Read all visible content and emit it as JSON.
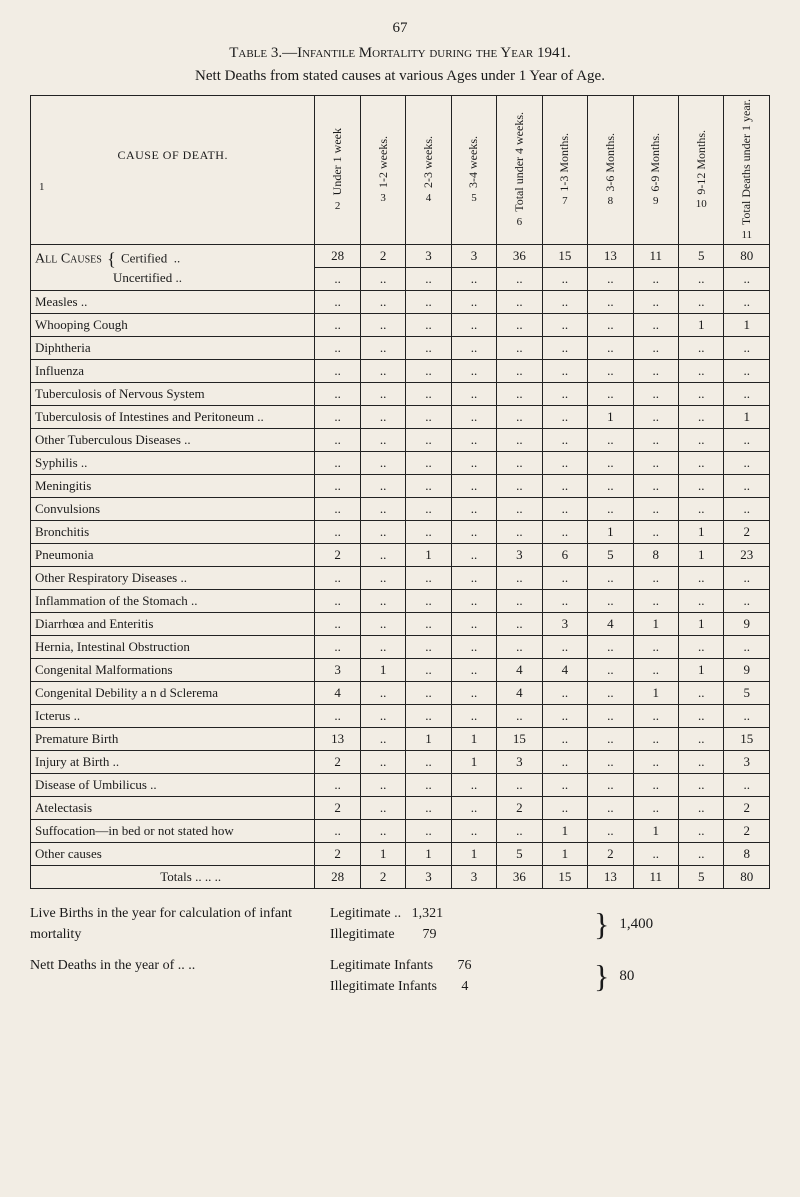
{
  "page_number": "67",
  "table_title": "Table 3.—Infantile Mortality during the Year 1941.",
  "subtitle": "Nett Deaths from stated causes at various Ages under 1 Year of Age.",
  "header": {
    "cause": "CAUSE OF DEATH.",
    "cause_colnum": "1",
    "cols": [
      {
        "label": "Under 1 week",
        "num": "2"
      },
      {
        "label": "1-2 weeks.",
        "num": "3"
      },
      {
        "label": "2-3 weeks.",
        "num": "4"
      },
      {
        "label": "3-4 weeks.",
        "num": "5"
      },
      {
        "label": "Total under 4 weeks.",
        "num": "6"
      },
      {
        "label": "1-3 Months.",
        "num": "7"
      },
      {
        "label": "3-6 Months.",
        "num": "8"
      },
      {
        "label": "6-9 Months.",
        "num": "9"
      },
      {
        "label": "9-12 Months.",
        "num": "10"
      },
      {
        "label": "Total Deaths under 1 year.",
        "num": "11"
      }
    ]
  },
  "all_causes": {
    "label": "All Causes",
    "certified": "Certified",
    "uncertified": "Uncertified",
    "certified_vals": [
      "28",
      "2",
      "3",
      "3",
      "36",
      "15",
      "13",
      "11",
      "5",
      "80"
    ],
    "uncertified_vals": [
      "..",
      "..",
      "..",
      "..",
      "..",
      "..",
      "..",
      "..",
      "..",
      ".."
    ]
  },
  "rows": [
    {
      "cause": "Measles ..",
      "v": [
        "..",
        "..",
        "..",
        "..",
        "..",
        "..",
        "..",
        "..",
        "..",
        ".."
      ]
    },
    {
      "cause": "Whooping Cough",
      "v": [
        "..",
        "..",
        "..",
        "..",
        "..",
        "..",
        "..",
        "..",
        "1",
        "1"
      ]
    },
    {
      "cause": "Diphtheria",
      "v": [
        "..",
        "..",
        "..",
        "..",
        "..",
        "..",
        "..",
        "..",
        "..",
        ".."
      ]
    },
    {
      "cause": "Influenza",
      "v": [
        "..",
        "..",
        "..",
        "..",
        "..",
        "..",
        "..",
        "..",
        "..",
        ".."
      ]
    },
    {
      "cause": "Tuberculosis of Nervous System",
      "v": [
        "..",
        "..",
        "..",
        "..",
        "..",
        "..",
        "..",
        "..",
        "..",
        ".."
      ]
    },
    {
      "cause": "Tuberculosis of Intestines and Peritoneum ..",
      "indent": false,
      "v": [
        "..",
        "..",
        "..",
        "..",
        "..",
        "..",
        "1",
        "..",
        "..",
        "1"
      ]
    },
    {
      "cause": "Other Tuberculous Diseases ..",
      "v": [
        "..",
        "..",
        "..",
        "..",
        "..",
        "..",
        "..",
        "..",
        "..",
        ".."
      ]
    },
    {
      "cause": "Syphilis ..",
      "v": [
        "..",
        "..",
        "..",
        "..",
        "..",
        "..",
        "..",
        "..",
        "..",
        ".."
      ]
    },
    {
      "cause": "Meningitis",
      "v": [
        "..",
        "..",
        "..",
        "..",
        "..",
        "..",
        "..",
        "..",
        "..",
        ".."
      ]
    },
    {
      "cause": "Convulsions",
      "v": [
        "..",
        "..",
        "..",
        "..",
        "..",
        "..",
        "..",
        "..",
        "..",
        ".."
      ]
    },
    {
      "cause": "Bronchitis",
      "v": [
        "..",
        "..",
        "..",
        "..",
        "..",
        "..",
        "1",
        "..",
        "1",
        "2"
      ]
    },
    {
      "cause": "Pneumonia",
      "v": [
        "2",
        "..",
        "1",
        "..",
        "3",
        "6",
        "5",
        "8",
        "1",
        "23"
      ]
    },
    {
      "cause": "Other Respiratory Diseases ..",
      "v": [
        "..",
        "..",
        "..",
        "..",
        "..",
        "..",
        "..",
        "..",
        "..",
        ".."
      ]
    },
    {
      "cause": "Inflammation of the Stomach ..",
      "v": [
        "..",
        "..",
        "..",
        "..",
        "..",
        "..",
        "..",
        "..",
        "..",
        ".."
      ]
    },
    {
      "cause": "Diarrhœa and Enteritis",
      "v": [
        "..",
        "..",
        "..",
        "..",
        "..",
        "3",
        "4",
        "1",
        "1",
        "9"
      ]
    },
    {
      "cause": "Hernia, Intestinal Obstruction",
      "v": [
        "..",
        "..",
        "..",
        "..",
        "..",
        "..",
        "..",
        "..",
        "..",
        ".."
      ]
    },
    {
      "cause": "Congenital Malformations",
      "v": [
        "3",
        "1",
        "..",
        "..",
        "4",
        "4",
        "..",
        "..",
        "1",
        "9"
      ]
    },
    {
      "cause": "Congenital Debility a n d Sclerema",
      "v": [
        "4",
        "..",
        "..",
        "..",
        "4",
        "..",
        "..",
        "1",
        "..",
        "5"
      ]
    },
    {
      "cause": "Icterus ..",
      "v": [
        "..",
        "..",
        "..",
        "..",
        "..",
        "..",
        "..",
        "..",
        "..",
        ".."
      ]
    },
    {
      "cause": "Premature Birth",
      "v": [
        "13",
        "..",
        "1",
        "1",
        "15",
        "..",
        "..",
        "..",
        "..",
        "15"
      ]
    },
    {
      "cause": "Injury at Birth ..",
      "v": [
        "2",
        "..",
        "..",
        "1",
        "3",
        "..",
        "..",
        "..",
        "..",
        "3"
      ]
    },
    {
      "cause": "Disease of Umbilicus ..",
      "v": [
        "..",
        "..",
        "..",
        "..",
        "..",
        "..",
        "..",
        "..",
        "..",
        ".."
      ]
    },
    {
      "cause": "Atelectasis",
      "v": [
        "2",
        "..",
        "..",
        "..",
        "2",
        "..",
        "..",
        "..",
        "..",
        "2"
      ]
    },
    {
      "cause": "Suffocation—in bed or not stated how",
      "v": [
        "..",
        "..",
        "..",
        "..",
        "..",
        "1",
        "..",
        "1",
        "..",
        "2"
      ]
    },
    {
      "cause": "Other causes",
      "v": [
        "2",
        "1",
        "1",
        "1",
        "5",
        "1",
        "2",
        "..",
        "..",
        "8"
      ]
    }
  ],
  "totals": {
    "label": "Totals  ..  ..  ..",
    "v": [
      "28",
      "2",
      "3",
      "3",
      "36",
      "15",
      "13",
      "11",
      "5",
      "80"
    ]
  },
  "footer": {
    "live_births": {
      "left": "Live Births in the year for calculation of infant mortality",
      "legitimate_label": "Legitimate ..",
      "legitimate_val": "1,321",
      "illegitimate_label": "Illegitimate",
      "illegitimate_val": "79",
      "total": "1,400"
    },
    "nett_deaths": {
      "left": "Nett Deaths in the year of ..  ..",
      "legitimate_label": "Legitimate Infants",
      "legitimate_val": "76",
      "illegitimate_label": "Illegitimate Infants",
      "illegitimate_val": "4",
      "total": "80"
    }
  }
}
